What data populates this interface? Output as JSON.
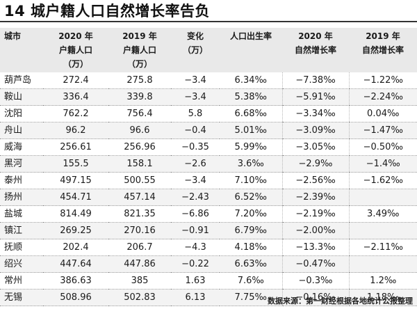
{
  "title": "14 城户籍人口自然增长率告负",
  "columns": [
    [
      "城市"
    ],
    [
      "2020 年",
      "户籍人口",
      "（万）"
    ],
    [
      "2019 年",
      "户籍人口",
      "（万）"
    ],
    [
      "变化",
      "（万）"
    ],
    [
      "人口出生率"
    ],
    [
      "2020 年",
      "自然增长率"
    ],
    [
      "2019 年",
      "自然增长率"
    ]
  ],
  "rows": [
    [
      "葫芦岛",
      "272.4",
      "275.8",
      "−3.4",
      "6.34‰",
      "−7.38‰",
      "−1.22‰"
    ],
    [
      "鞍山",
      "336.4",
      "339.8",
      "−3.4",
      "5.38‰",
      "−5.91‰",
      "−2.24‰"
    ],
    [
      "沈阳",
      "762.2",
      "756.4",
      "5.8",
      "6.68‰",
      "−3.34‰",
      "0.04‰"
    ],
    [
      "舟山",
      "96.2",
      "96.6",
      "−0.4",
      "5.01‰",
      "−3.09‰",
      "−1.47‰"
    ],
    [
      "威海",
      "256.61",
      "256.96",
      "−0.35",
      "5.99‰",
      "−3.05‰",
      "−0.50‰"
    ],
    [
      "黑河",
      "155.5",
      "158.1",
      "−2.6",
      "3.6‰",
      "−2.9‰",
      "−1.4‰"
    ],
    [
      "泰州",
      "497.15",
      "500.55",
      "−3.4",
      "7.10‰",
      "−2.56‰",
      "−1.62‰"
    ],
    [
      "扬州",
      "454.71",
      "457.14",
      "−2.43",
      "6.52‰",
      "−2.39‰",
      ""
    ],
    [
      "盐城",
      "814.49",
      "821.35",
      "−6.86",
      "7.20‰",
      "−2.19‰",
      "3.49‰"
    ],
    [
      "镇江",
      "269.25",
      "270.16",
      "−0.91",
      "6.79‰",
      "−2.00‰",
      ""
    ],
    [
      "抚顺",
      "202.4",
      "206.7",
      "−4.3",
      "4.18‰",
      "−13.3‰",
      "−2.11‰"
    ],
    [
      "绍兴",
      "447.64",
      "447.86",
      "−0.22",
      "6.63‰",
      "−0.47‰",
      ""
    ],
    [
      "常州",
      "386.63",
      "385",
      "1.63",
      "7.6‰",
      "−0.3‰",
      "1.2‰"
    ],
    [
      "无锡",
      "508.96",
      "502.83",
      "6.13",
      "7.75‰",
      "−0.16‰",
      "1.18‰"
    ]
  ],
  "source": "数据来源：第一财经根据各地统计公报整理"
}
